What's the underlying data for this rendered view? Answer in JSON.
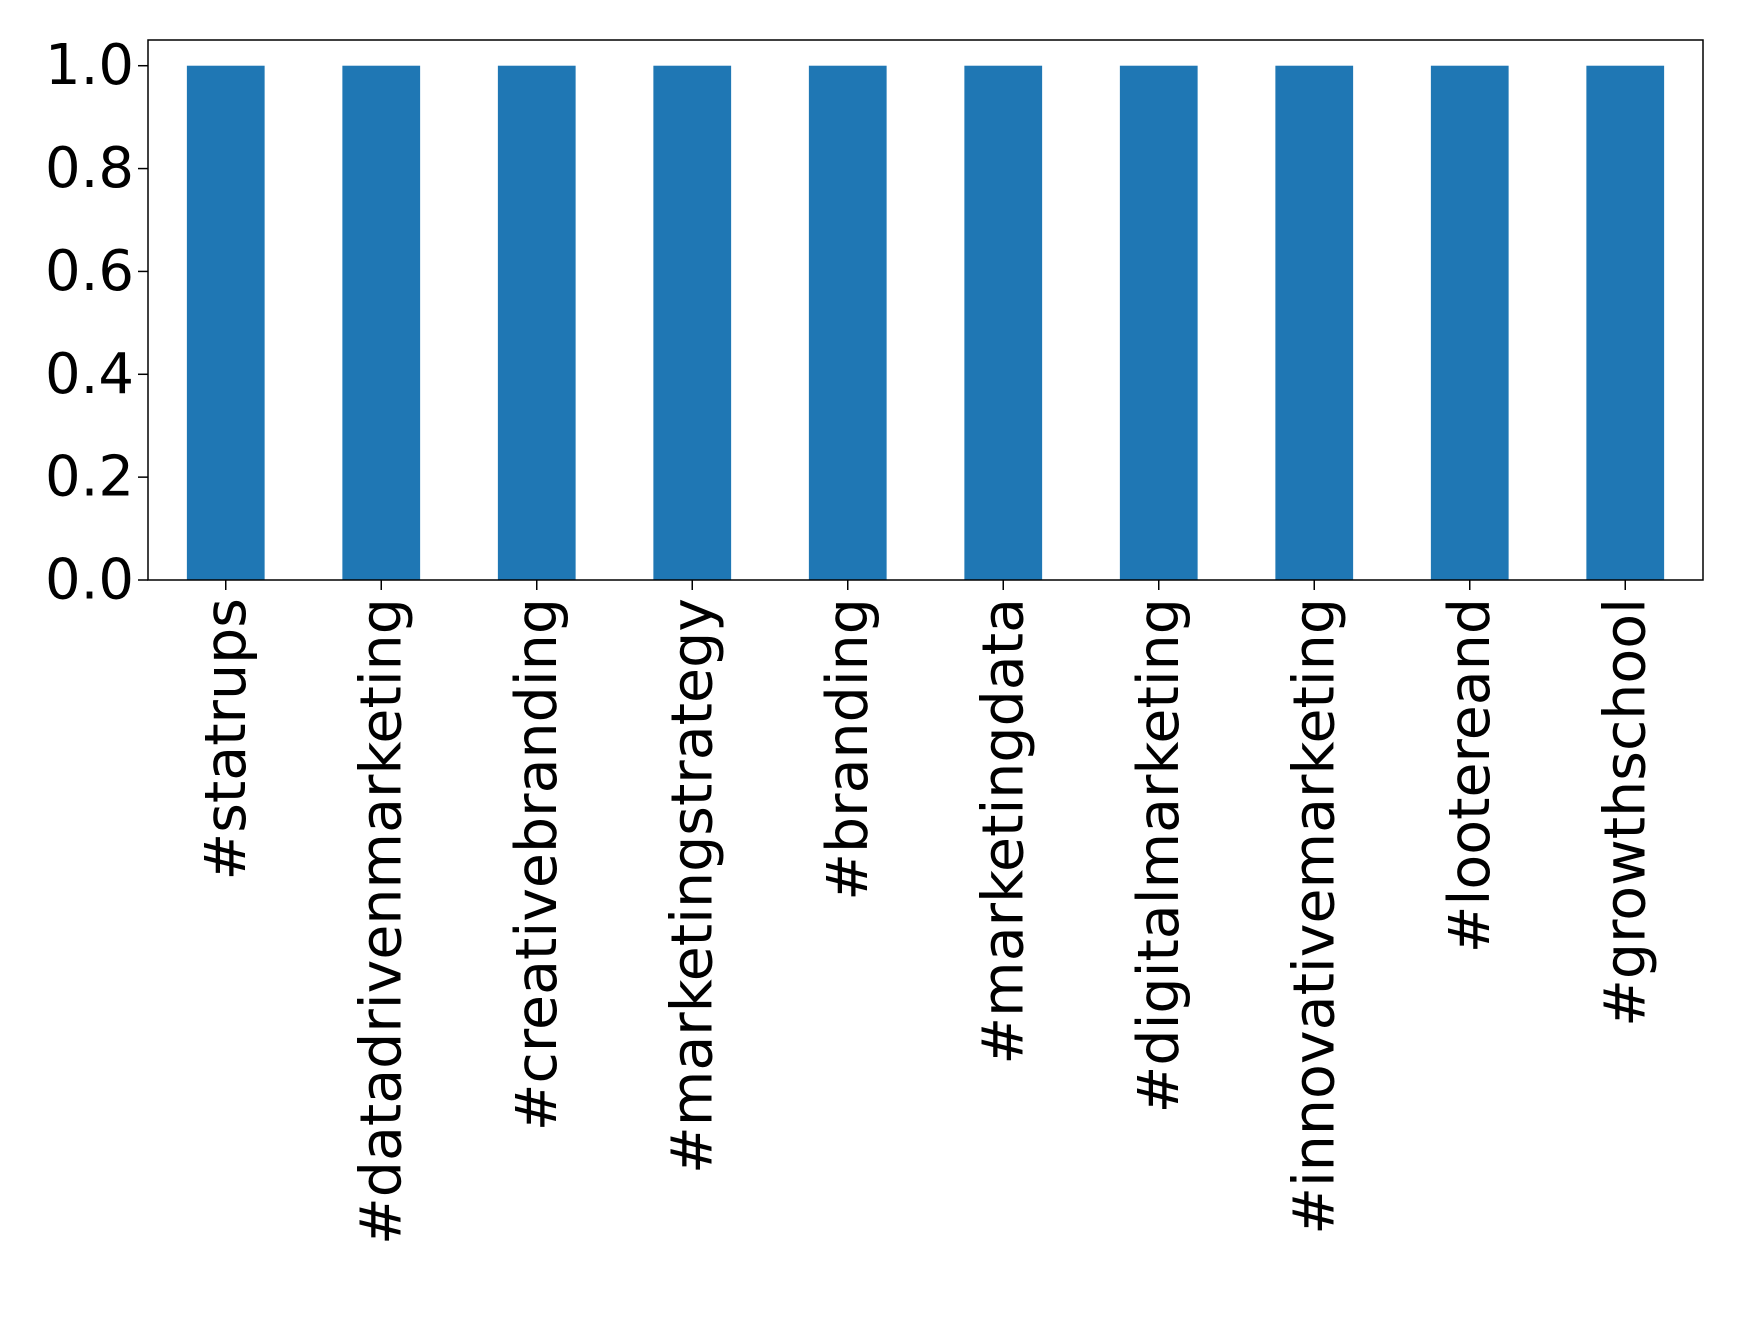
{
  "chart_data": {
    "type": "bar",
    "title": "",
    "xlabel": "",
    "ylabel": "",
    "categories": [
      "#statrups",
      "#datadrivenmarketing",
      "#creativebranding",
      "#marketingstrategy",
      "#branding",
      "#marketingdata",
      "#digitalmarketing",
      "#innovativemarketing",
      "#lootereand",
      "#growthschool"
    ],
    "values": [
      1.0,
      1.0,
      1.0,
      1.0,
      1.0,
      1.0,
      1.0,
      1.0,
      1.0,
      1.0
    ],
    "ylim": [
      0,
      1.05
    ],
    "yticks": [
      "0.0",
      "0.2",
      "0.4",
      "0.6",
      "0.8",
      "1.0"
    ],
    "grid": false,
    "legend": "none",
    "bar_color": "#1f77b4"
  }
}
